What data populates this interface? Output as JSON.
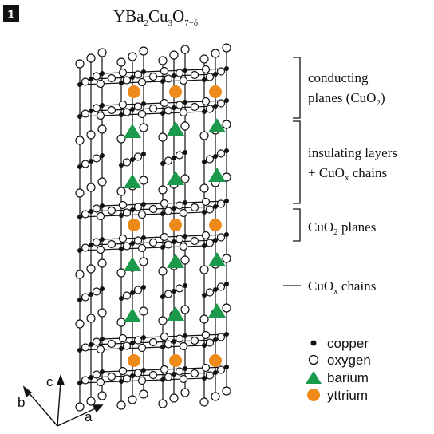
{
  "panel_label": "1",
  "title": [
    "YBa",
    "2",
    "Cu",
    "3",
    "O",
    "7−δ"
  ],
  "annotations": [
    {
      "lines": [
        [
          "conducting"
        ],
        [
          "planes (CuO",
          "2",
          ")"
        ]
      ]
    },
    {
      "lines": [
        [
          "insulating layers"
        ],
        [
          "+ CuO",
          "x",
          " chains"
        ]
      ]
    },
    {
      "lines": [
        [
          "CuO",
          "2",
          " planes"
        ]
      ]
    },
    {
      "lines": [
        [
          "CuO",
          "x",
          " chains"
        ]
      ]
    }
  ],
  "legend": [
    "copper",
    "oxygen",
    "barium",
    "yttrium"
  ],
  "axes": [
    "a",
    "b",
    "c"
  ]
}
